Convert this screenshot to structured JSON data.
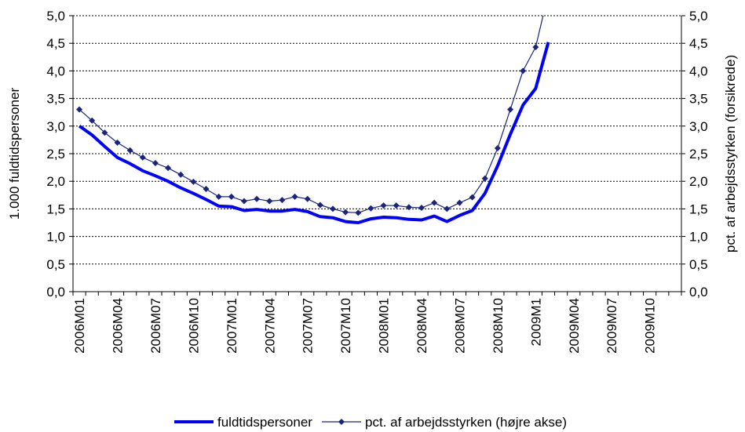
{
  "chart_data": {
    "type": "line",
    "categories": [
      "2006M01",
      null,
      null,
      "2006M04",
      null,
      null,
      "2006M07",
      null,
      null,
      "2006M10",
      null,
      null,
      "2007M01",
      null,
      null,
      "2007M04",
      null,
      null,
      "2007M07",
      null,
      null,
      "2007M10",
      null,
      null,
      "2008M01",
      null,
      null,
      "2008M04",
      null,
      null,
      "2008M07",
      null,
      null,
      "2008M10",
      null,
      null,
      "2009M1",
      null,
      null,
      "2009M04",
      null,
      null,
      "2009M07",
      null,
      null,
      "2009M10",
      null,
      null
    ],
    "ylabel": "1.000 fuldtidspersoner",
    "y2label": "pct. af arbejdsstyrken (forsikrede)",
    "ylim": [
      0,
      5
    ],
    "y2lim": [
      0,
      5
    ],
    "yticks": [
      {
        "value": 0,
        "label": "0,0"
      },
      {
        "value": 0.5,
        "label": "0,5"
      },
      {
        "value": 1,
        "label": "1,0"
      },
      {
        "value": 1.5,
        "label": "1,5"
      },
      {
        "value": 2,
        "label": "2,0"
      },
      {
        "value": 2.5,
        "label": "2,5"
      },
      {
        "value": 3,
        "label": "3,0"
      },
      {
        "value": 3.5,
        "label": "3,5"
      },
      {
        "value": 4,
        "label": "4,0"
      },
      {
        "value": 4.5,
        "label": "4,5"
      },
      {
        "value": 5,
        "label": "5,0"
      }
    ],
    "y2ticks": [
      {
        "value": 0,
        "label": "0,0"
      },
      {
        "value": 0.5,
        "label": "0,5"
      },
      {
        "value": 1,
        "label": "1,0"
      },
      {
        "value": 1.5,
        "label": "1,5"
      },
      {
        "value": 2,
        "label": "2,0"
      },
      {
        "value": 2.5,
        "label": "2,5"
      },
      {
        "value": 3,
        "label": "3,0"
      },
      {
        "value": 3.5,
        "label": "3,5"
      },
      {
        "value": 4,
        "label": "4,0"
      },
      {
        "value": 4.5,
        "label": "4,5"
      },
      {
        "value": 5,
        "label": "5,0"
      }
    ],
    "grid": true,
    "series": [
      {
        "name": "fuldtidspersoner",
        "color": "#0000ff",
        "values": [
          3.0,
          2.84,
          2.63,
          2.43,
          2.32,
          2.19,
          2.1,
          2.0,
          1.88,
          1.78,
          1.67,
          1.55,
          1.54,
          1.47,
          1.49,
          1.46,
          1.46,
          1.49,
          1.45,
          1.36,
          1.34,
          1.27,
          1.25,
          1.32,
          1.35,
          1.34,
          1.31,
          1.3,
          1.37,
          1.27,
          1.38,
          1.47,
          1.78,
          2.28,
          2.85,
          3.38,
          3.68,
          4.52,
          null,
          null,
          null,
          null,
          null,
          null,
          null,
          null,
          null,
          null
        ]
      },
      {
        "name": "pct. af arbejdsstyrken (højre akse)",
        "color": "#1a237e",
        "axis": "y2",
        "values": [
          3.3,
          3.1,
          2.88,
          2.7,
          2.56,
          2.43,
          2.33,
          2.24,
          2.12,
          1.99,
          1.86,
          1.72,
          1.72,
          1.64,
          1.68,
          1.64,
          1.66,
          1.72,
          1.68,
          1.57,
          1.5,
          1.44,
          1.43,
          1.51,
          1.56,
          1.56,
          1.53,
          1.52,
          1.61,
          1.5,
          1.61,
          1.71,
          2.05,
          2.6,
          3.3,
          4.0,
          4.43,
          5.4,
          null,
          null,
          null,
          null,
          null,
          null,
          null,
          null,
          null,
          null
        ]
      }
    ]
  }
}
